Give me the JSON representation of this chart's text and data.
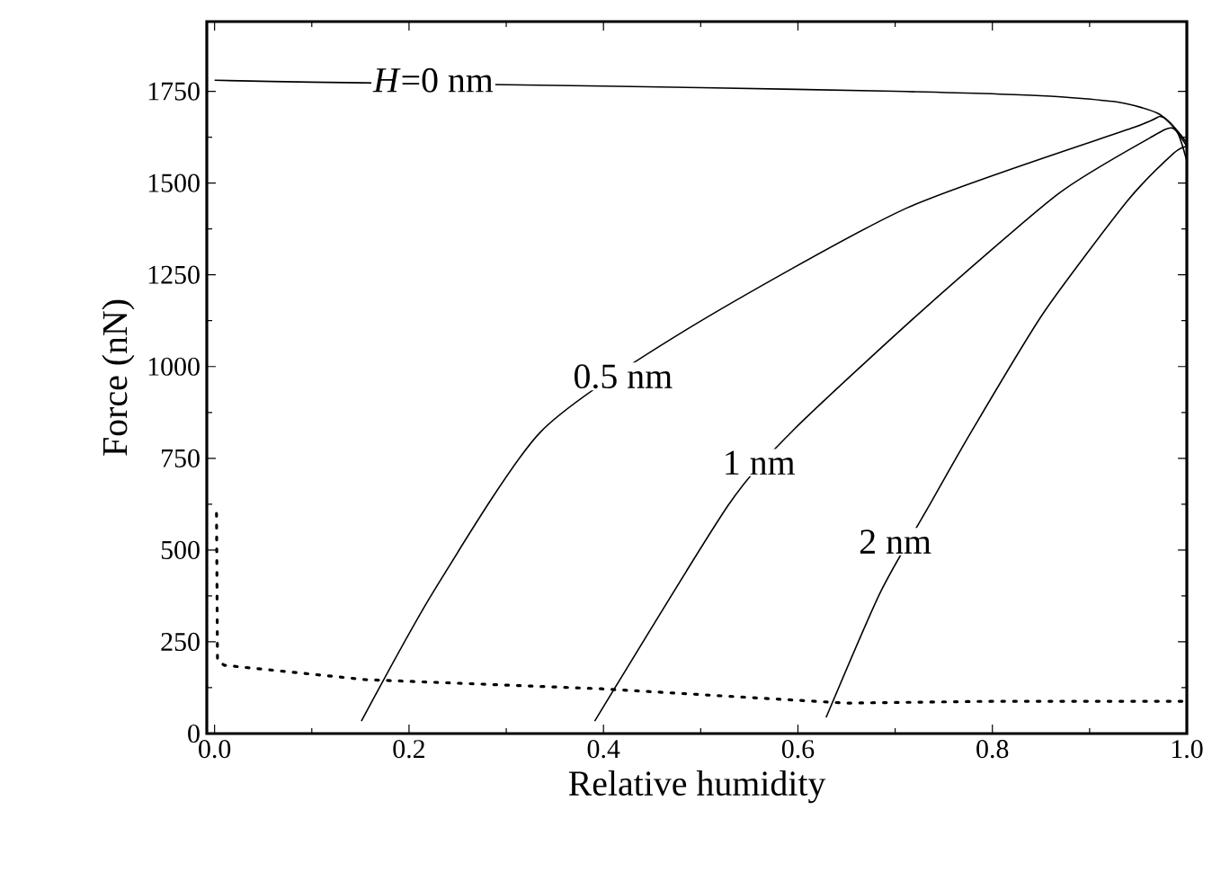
{
  "chart_data": {
    "type": "line",
    "xlabel": "Relative humidity",
    "ylabel": "Force (nN)",
    "xlim": [
      -0.008,
      1.0
    ],
    "ylim": [
      0,
      1940
    ],
    "xticks": [
      {
        "value": 0,
        "label": "0.0"
      },
      0.2,
      0.4,
      0.6,
      0.8,
      {
        "value": 1,
        "label": "1.0"
      }
    ],
    "yticks": [
      0,
      250,
      500,
      750,
      1000,
      1250,
      1500,
      1750
    ],
    "grid": false,
    "marker": "none",
    "series": [
      {
        "color": "#000000",
        "line_style": "solid",
        "x": [
          0,
          0.1,
          0.3,
          0.5,
          0.7,
          0.85,
          0.93,
          0.97,
          0.99,
          1.0
        ],
        "values": [
          1780,
          1775,
          1768,
          1760,
          1750,
          1738,
          1720,
          1690,
          1640,
          1560
        ]
      },
      {
        "color": "#000000",
        "line_style": "solid",
        "x": [
          0.151,
          0.225,
          0.335,
          0.485,
          0.712,
          0.946,
          0.975,
          1.0
        ],
        "values": [
          34,
          386,
          821,
          1100,
          1432,
          1652,
          1680,
          1610
        ]
      },
      {
        "color": "#000000",
        "line_style": "solid",
        "x": [
          0.391,
          0.528,
          0.595,
          0.728,
          0.868,
          0.962,
          0.985,
          1.0
        ],
        "values": [
          34,
          621,
          826,
          1153,
          1471,
          1623,
          1650,
          1600
        ]
      },
      {
        "color": "#000000",
        "line_style": "solid",
        "x": [
          0.629,
          0.685,
          0.735,
          0.778,
          0.852,
          0.939,
          0.986,
          1.0
        ],
        "values": [
          44,
          386,
          621,
          821,
          1144,
          1452,
          1580,
          1600
        ]
      },
      {
        "color": "#000000",
        "line_style": "dotted",
        "x": [
          0.002,
          0.003,
          0.01,
          0.155,
          0.398,
          0.649,
          0.8,
          1.0
        ],
        "values": [
          600,
          200,
          186,
          147,
          122,
          83,
          88,
          88
        ]
      }
    ],
    "annotations": [
      {
        "text": "*H*=0 nm",
        "x": 0.225,
        "y": 1780
      },
      {
        "text": "0.5 nm",
        "x": 0.42,
        "y": 973
      },
      {
        "text": "1 nm",
        "x": 0.56,
        "y": 738
      },
      {
        "text": "2 nm",
        "x": 0.7,
        "y": 523
      }
    ]
  }
}
